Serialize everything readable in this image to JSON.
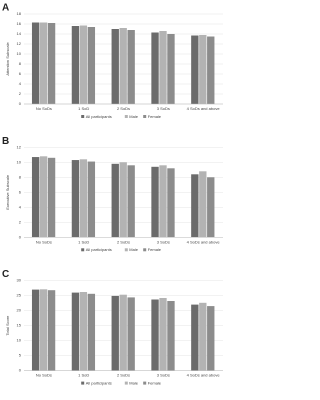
{
  "chart_data": [
    {
      "type": "bar",
      "label": "A",
      "ylabel": "Attention Subscale",
      "categories": [
        "No SoDs",
        "1 SoD",
        "2 SoDs",
        "3 SoDs",
        "4 SoDs and above"
      ],
      "series": [
        {
          "name": "All participants",
          "color": "#6b6b6b",
          "values": [
            16.3,
            15.6,
            15.0,
            14.3,
            13.7
          ]
        },
        {
          "name": "Male",
          "color": "#b3b3b3",
          "values": [
            16.3,
            15.7,
            15.2,
            14.6,
            13.8
          ]
        },
        {
          "name": "Female",
          "color": "#8c8c8c",
          "values": [
            16.2,
            15.4,
            14.8,
            14.0,
            13.5
          ]
        }
      ],
      "ylim": [
        0,
        18
      ],
      "yticks": [
        0,
        2,
        4,
        6,
        8,
        10,
        12,
        14,
        16,
        18
      ],
      "grid": true
    },
    {
      "type": "bar",
      "label": "B",
      "ylabel": "Executive Subscale",
      "categories": [
        "No SoDs",
        "1 SoD",
        "2 SoDs",
        "3 SoDs",
        "4 SoDs and above"
      ],
      "series": [
        {
          "name": "All participants",
          "color": "#6b6b6b",
          "values": [
            10.7,
            10.3,
            9.8,
            9.4,
            8.4
          ]
        },
        {
          "name": "Male",
          "color": "#b3b3b3",
          "values": [
            10.8,
            10.4,
            10.0,
            9.6,
            8.8
          ]
        },
        {
          "name": "Female",
          "color": "#8c8c8c",
          "values": [
            10.6,
            10.1,
            9.6,
            9.2,
            8.0
          ]
        }
      ],
      "ylim": [
        0,
        12
      ],
      "yticks": [
        0,
        2,
        4,
        6,
        8,
        10,
        12
      ],
      "grid": true
    },
    {
      "type": "bar",
      "label": "C",
      "ylabel": "Total Score",
      "categories": [
        "No SoDs",
        "1 SoD",
        "2 SoDs",
        "3 SoDs",
        "4 SoDs and above"
      ],
      "series": [
        {
          "name": "All participants",
          "color": "#6b6b6b",
          "values": [
            27.0,
            26.0,
            24.9,
            23.7,
            22.0
          ]
        },
        {
          "name": "Male",
          "color": "#b3b3b3",
          "values": [
            27.1,
            26.2,
            25.3,
            24.2,
            22.6
          ]
        },
        {
          "name": "Female",
          "color": "#8c8c8c",
          "values": [
            26.8,
            25.6,
            24.4,
            23.2,
            21.5
          ]
        }
      ],
      "ylim": [
        0,
        30
      ],
      "yticks": [
        0,
        5,
        10,
        15,
        20,
        25,
        30
      ],
      "grid": true
    }
  ]
}
